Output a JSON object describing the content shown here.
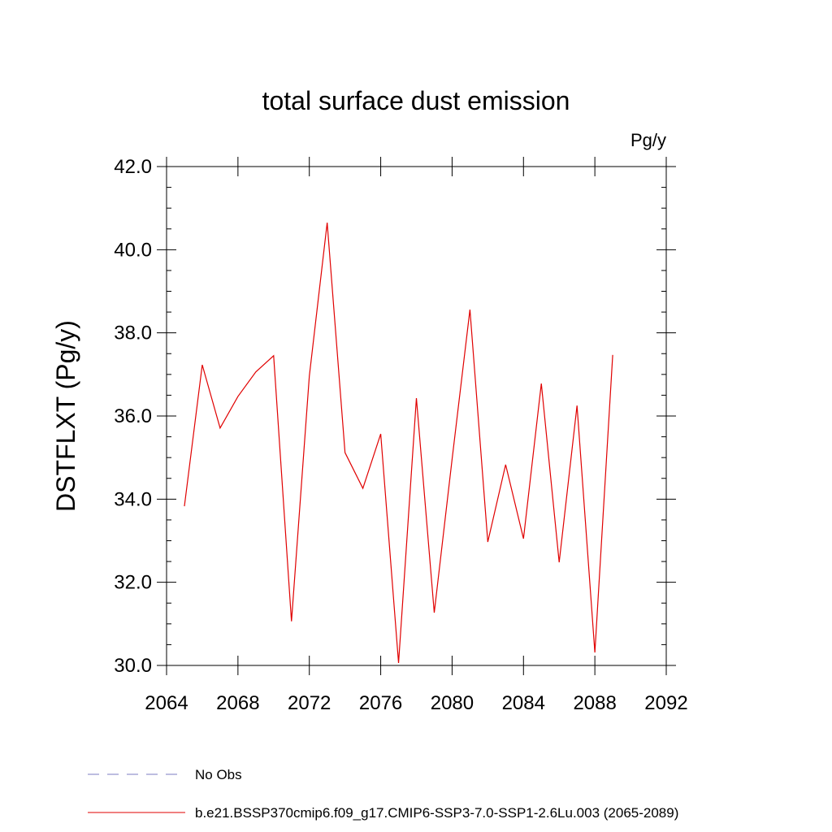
{
  "chart_data": {
    "type": "line",
    "title": "total surface dust emission",
    "units": "Pg/y",
    "ylabel": "DSTFLXT  (Pg/y)",
    "x": [
      2065,
      2066,
      2067,
      2068,
      2069,
      2070,
      2071,
      2072,
      2073,
      2074,
      2075,
      2076,
      2077,
      2078,
      2079,
      2080,
      2081,
      2082,
      2083,
      2084,
      2085,
      2086,
      2087,
      2088,
      2089
    ],
    "series": [
      {
        "name": "No Obs",
        "color": "#7b7bc0",
        "dash": true,
        "values": [
          null,
          null,
          null,
          null,
          null,
          null,
          null,
          null,
          null,
          null,
          null,
          null,
          null,
          null,
          null,
          null,
          null,
          null,
          null,
          null,
          null,
          null,
          null,
          null,
          null
        ]
      },
      {
        "name": "b.e21.BSSP370cmip6.f09_g17.CMIP6-SSP3-7.0-SSP1-2.6Lu.003 (2065-2089)",
        "color": "#e00000",
        "dash": false,
        "values": [
          33.83,
          37.23,
          35.71,
          36.47,
          37.06,
          37.45,
          31.06,
          36.96,
          40.65,
          35.12,
          34.26,
          35.57,
          30.06,
          36.43,
          31.27,
          34.96,
          38.56,
          32.97,
          34.83,
          33.05,
          36.78,
          32.48,
          36.25,
          30.31,
          37.47
        ]
      }
    ],
    "xlim": [
      2064,
      2092
    ],
    "xticks": [
      2064,
      2068,
      2072,
      2076,
      2080,
      2084,
      2088,
      2092
    ],
    "ylim": [
      30,
      42
    ],
    "yticks": [
      {
        "value": 30,
        "label": "30.0"
      },
      {
        "value": 32,
        "label": "32.0"
      },
      {
        "value": 34,
        "label": "34.0"
      },
      {
        "value": 36,
        "label": "36.0"
      },
      {
        "value": 38,
        "label": "38.0"
      },
      {
        "value": 40,
        "label": "40.0"
      },
      {
        "value": 42,
        "label": "42.0"
      }
    ]
  }
}
